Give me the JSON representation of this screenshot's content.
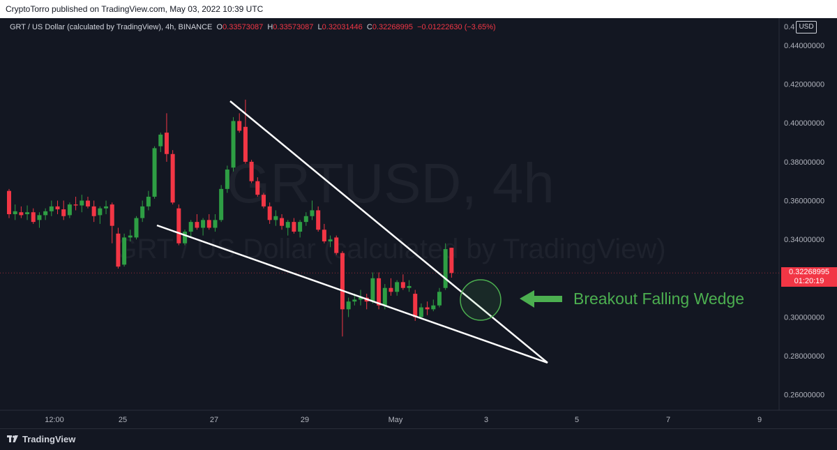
{
  "header": {
    "published_text": "CryptoTorro published on TradingView.com, May 03, 2022 10:39 UTC"
  },
  "legend": {
    "symbol": "GRT / US Dollar (calculated by TradingView), 4h, BINANCE",
    "open_label": "O",
    "open_value": "0.33573087",
    "high_label": "H",
    "high_value": "0.33573087",
    "low_label": "L",
    "low_value": "0.32031446",
    "close_label": "C",
    "close_value": "0.32268995",
    "change": "−0.01222630 (−3.65%)"
  },
  "watermark": {
    "line1": "GRTUSD, 4h",
    "line2": "GRT / US Dollar (calculated by TradingView)"
  },
  "axis": {
    "currency": "USD",
    "y_ticks": [
      "0.44000000",
      "0.42000000",
      "0.40000000",
      "0.38000000",
      "0.36000000",
      "0.34000000",
      "0.30000000",
      "0.28000000",
      "0.26000000"
    ],
    "y_top_partial": "0.4",
    "x_ticks": [
      "12:00",
      "25",
      "27",
      "29",
      "May",
      "3",
      "5",
      "7",
      "9"
    ]
  },
  "price_tag": {
    "price": "0.32268995",
    "countdown": "01:20:19"
  },
  "annotation": {
    "text": "Breakout Falling Wedge"
  },
  "footer": {
    "brand": "TradingView"
  },
  "colors": {
    "up": "#26a69a",
    "up_green": "#2e9e44",
    "down": "#f23645",
    "background": "#131722",
    "annotation": "#4caf50"
  },
  "chart_data": {
    "type": "candlestick",
    "symbol": "GRTUSD",
    "timeframe": "4h",
    "exchange": "BINANCE",
    "ylim": [
      0.252,
      0.454
    ],
    "candles": [
      {
        "o": 0.365,
        "h": 0.366,
        "l": 0.351,
        "c": 0.353
      },
      {
        "o": 0.353,
        "h": 0.358,
        "l": 0.35,
        "c": 0.3545
      },
      {
        "o": 0.354,
        "h": 0.357,
        "l": 0.351,
        "c": 0.3525
      },
      {
        "o": 0.353,
        "h": 0.3575,
        "l": 0.35,
        "c": 0.354
      },
      {
        "o": 0.354,
        "h": 0.356,
        "l": 0.348,
        "c": 0.349
      },
      {
        "o": 0.35,
        "h": 0.354,
        "l": 0.346,
        "c": 0.3525
      },
      {
        "o": 0.3525,
        "h": 0.356,
        "l": 0.35,
        "c": 0.3545
      },
      {
        "o": 0.3545,
        "h": 0.36,
        "l": 0.352,
        "c": 0.357
      },
      {
        "o": 0.357,
        "h": 0.36,
        "l": 0.353,
        "c": 0.3555
      },
      {
        "o": 0.3555,
        "h": 0.36,
        "l": 0.35,
        "c": 0.352
      },
      {
        "o": 0.3525,
        "h": 0.359,
        "l": 0.351,
        "c": 0.358
      },
      {
        "o": 0.358,
        "h": 0.362,
        "l": 0.355,
        "c": 0.3575
      },
      {
        "o": 0.3575,
        "h": 0.363,
        "l": 0.354,
        "c": 0.36
      },
      {
        "o": 0.36,
        "h": 0.362,
        "l": 0.356,
        "c": 0.357
      },
      {
        "o": 0.357,
        "h": 0.36,
        "l": 0.349,
        "c": 0.352
      },
      {
        "o": 0.3525,
        "h": 0.357,
        "l": 0.348,
        "c": 0.356
      },
      {
        "o": 0.356,
        "h": 0.36,
        "l": 0.353,
        "c": 0.357
      },
      {
        "o": 0.358,
        "h": 0.359,
        "l": 0.338,
        "c": 0.347
      },
      {
        "o": 0.343,
        "h": 0.346,
        "l": 0.325,
        "c": 0.326
      },
      {
        "o": 0.327,
        "h": 0.343,
        "l": 0.326,
        "c": 0.341
      },
      {
        "o": 0.341,
        "h": 0.345,
        "l": 0.339,
        "c": 0.342
      },
      {
        "o": 0.341,
        "h": 0.352,
        "l": 0.34,
        "c": 0.351
      },
      {
        "o": 0.351,
        "h": 0.36,
        "l": 0.349,
        "c": 0.357
      },
      {
        "o": 0.357,
        "h": 0.365,
        "l": 0.355,
        "c": 0.362
      },
      {
        "o": 0.362,
        "h": 0.388,
        "l": 0.361,
        "c": 0.387
      },
      {
        "o": 0.388,
        "h": 0.395,
        "l": 0.385,
        "c": 0.394
      },
      {
        "o": 0.395,
        "h": 0.405,
        "l": 0.38,
        "c": 0.384
      },
      {
        "o": 0.384,
        "h": 0.386,
        "l": 0.358,
        "c": 0.359
      },
      {
        "o": 0.356,
        "h": 0.358,
        "l": 0.337,
        "c": 0.338
      },
      {
        "o": 0.338,
        "h": 0.345,
        "l": 0.337,
        "c": 0.344
      },
      {
        "o": 0.344,
        "h": 0.35,
        "l": 0.341,
        "c": 0.349
      },
      {
        "o": 0.349,
        "h": 0.353,
        "l": 0.345,
        "c": 0.346
      },
      {
        "o": 0.346,
        "h": 0.351,
        "l": 0.342,
        "c": 0.35
      },
      {
        "o": 0.35,
        "h": 0.353,
        "l": 0.345,
        "c": 0.346
      },
      {
        "o": 0.346,
        "h": 0.353,
        "l": 0.344,
        "c": 0.35
      },
      {
        "o": 0.35,
        "h": 0.368,
        "l": 0.349,
        "c": 0.366
      },
      {
        "o": 0.366,
        "h": 0.378,
        "l": 0.364,
        "c": 0.376
      },
      {
        "o": 0.377,
        "h": 0.403,
        "l": 0.375,
        "c": 0.401
      },
      {
        "o": 0.401,
        "h": 0.405,
        "l": 0.395,
        "c": 0.396
      },
      {
        "o": 0.398,
        "h": 0.412,
        "l": 0.379,
        "c": 0.38
      },
      {
        "o": 0.38,
        "h": 0.381,
        "l": 0.369,
        "c": 0.37
      },
      {
        "o": 0.37,
        "h": 0.372,
        "l": 0.362,
        "c": 0.363
      },
      {
        "o": 0.363,
        "h": 0.364,
        "l": 0.356,
        "c": 0.357
      },
      {
        "o": 0.357,
        "h": 0.359,
        "l": 0.348,
        "c": 0.35
      },
      {
        "o": 0.35,
        "h": 0.355,
        "l": 0.347,
        "c": 0.352
      },
      {
        "o": 0.351,
        "h": 0.353,
        "l": 0.345,
        "c": 0.347
      },
      {
        "o": 0.346,
        "h": 0.35,
        "l": 0.342,
        "c": 0.349
      },
      {
        "o": 0.349,
        "h": 0.351,
        "l": 0.343,
        "c": 0.344
      },
      {
        "o": 0.344,
        "h": 0.35,
        "l": 0.341,
        "c": 0.349
      },
      {
        "o": 0.349,
        "h": 0.354,
        "l": 0.347,
        "c": 0.352
      },
      {
        "o": 0.352,
        "h": 0.36,
        "l": 0.35,
        "c": 0.355
      },
      {
        "o": 0.355,
        "h": 0.357,
        "l": 0.344,
        "c": 0.345
      },
      {
        "o": 0.345,
        "h": 0.348,
        "l": 0.338,
        "c": 0.339
      },
      {
        "o": 0.339,
        "h": 0.342,
        "l": 0.336,
        "c": 0.34
      },
      {
        "o": 0.341,
        "h": 0.342,
        "l": 0.332,
        "c": 0.333
      },
      {
        "o": 0.333,
        "h": 0.334,
        "l": 0.29,
        "c": 0.304
      },
      {
        "o": 0.304,
        "h": 0.31,
        "l": 0.3,
        "c": 0.308
      },
      {
        "o": 0.308,
        "h": 0.312,
        "l": 0.306,
        "c": 0.309
      },
      {
        "o": 0.309,
        "h": 0.314,
        "l": 0.306,
        "c": 0.31
      },
      {
        "o": 0.31,
        "h": 0.312,
        "l": 0.304,
        "c": 0.308
      },
      {
        "o": 0.308,
        "h": 0.323,
        "l": 0.307,
        "c": 0.32
      },
      {
        "o": 0.32,
        "h": 0.323,
        "l": 0.304,
        "c": 0.306
      },
      {
        "o": 0.306,
        "h": 0.317,
        "l": 0.304,
        "c": 0.315
      },
      {
        "o": 0.315,
        "h": 0.32,
        "l": 0.311,
        "c": 0.313
      },
      {
        "o": 0.313,
        "h": 0.319,
        "l": 0.311,
        "c": 0.318
      },
      {
        "o": 0.318,
        "h": 0.322,
        "l": 0.314,
        "c": 0.315
      },
      {
        "o": 0.315,
        "h": 0.319,
        "l": 0.313,
        "c": 0.316
      },
      {
        "o": 0.312,
        "h": 0.314,
        "l": 0.298,
        "c": 0.3
      },
      {
        "o": 0.3,
        "h": 0.307,
        "l": 0.299,
        "c": 0.305
      },
      {
        "o": 0.305,
        "h": 0.308,
        "l": 0.301,
        "c": 0.304
      },
      {
        "o": 0.304,
        "h": 0.309,
        "l": 0.303,
        "c": 0.306
      },
      {
        "o": 0.306,
        "h": 0.315,
        "l": 0.305,
        "c": 0.313
      },
      {
        "o": 0.315,
        "h": 0.338,
        "l": 0.314,
        "c": 0.335
      },
      {
        "o": 0.3357,
        "h": 0.3357,
        "l": 0.3203,
        "c": 0.3227
      }
    ]
  }
}
